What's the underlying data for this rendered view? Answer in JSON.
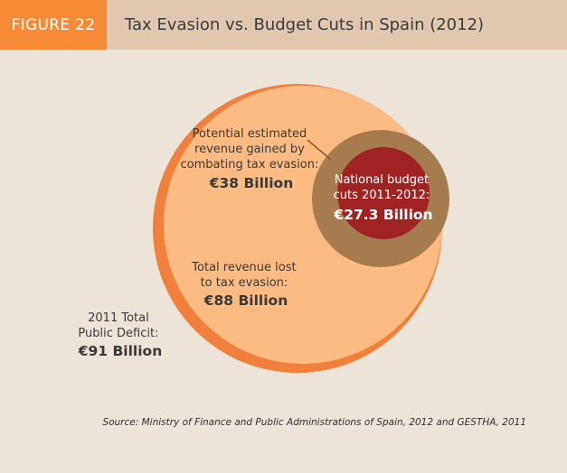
{
  "header": {
    "figure_label": "FIGURE 22",
    "title": "Tax Evasion vs. Budget Cuts in Spain (2012)"
  },
  "chart_data": {
    "type": "nested-circles",
    "unit": "€ Billion",
    "items": [
      {
        "label_lines": [
          "2011 Total",
          "Public Deficit:"
        ],
        "value_text": "€91 Billion",
        "value": 91
      },
      {
        "label_lines": [
          "Total revenue lost",
          "to tax evasion:"
        ],
        "value_text": "€88 Billion",
        "value": 88
      },
      {
        "label_lines": [
          "Potential estimated",
          "revenue gained by",
          "combating tax evasion:"
        ],
        "value_text": "€38 Billion",
        "value": 38
      },
      {
        "label_lines": [
          "National budget",
          "cuts 2011-2012:"
        ],
        "value_text": "€27.3 Billion",
        "value": 27.3
      }
    ]
  },
  "colors": {
    "deficit": "#f0803c",
    "revenue_lost": "#fcbb82",
    "potential_gain": "#a67c4e",
    "budget_cuts": "#a02323",
    "header_accent": "#f58b36",
    "header_bg": "#e0c8b0",
    "background": "#ece3d9"
  },
  "source": "Source: Ministry of Finance and Public Administrations of Spain, 2012 and GESTHA, 2011"
}
